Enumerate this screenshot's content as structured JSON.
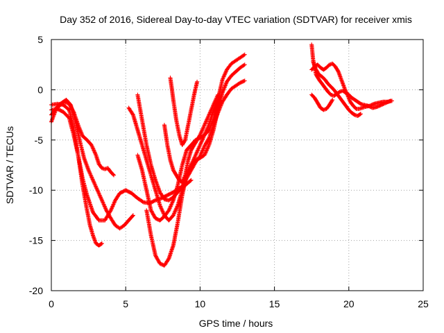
{
  "chart_data": {
    "type": "scatter",
    "title": "Day 352 of 2016, Sidereal Day-to-day VTEC variation (SDTVAR) for receiver xmis",
    "xlabel": "GPS time / hours",
    "ylabel": "SDTVAR / TECUs",
    "xlim": [
      0,
      25
    ],
    "ylim": [
      -20,
      5
    ],
    "xticks": [
      0,
      5,
      10,
      15,
      20,
      25
    ],
    "yticks": [
      5,
      0,
      -5,
      -10,
      -15,
      -20
    ],
    "grid": true,
    "marker": "+",
    "color": "#ff0000",
    "series": [
      {
        "x": [
          0,
          0.3,
          0.6,
          0.9,
          1.2,
          1.5,
          1.8,
          2.1,
          2.4,
          2.7,
          3.0,
          3.2,
          3.4,
          3.6,
          3.8,
          4.0,
          4.2
        ],
        "y": [
          -3.2,
          -2.0,
          -1.5,
          -1.2,
          -1.4,
          -2.2,
          -3.5,
          -4.6,
          -5.0,
          -5.5,
          -6.5,
          -7.4,
          -7.8,
          -7.9,
          -7.8,
          -8.2,
          -8.5
        ]
      },
      {
        "x": [
          0,
          0.4,
          0.8,
          1.2,
          1.5,
          1.8,
          2.1,
          2.4,
          2.6,
          2.8,
          3.0,
          3.2,
          3.4
        ],
        "y": [
          -1.5,
          -1.4,
          -1.5,
          -2.0,
          -3.8,
          -6.5,
          -9.5,
          -12.0,
          -13.5,
          -14.5,
          -15.3,
          -15.5,
          -15.3
        ]
      },
      {
        "x": [
          0,
          0.4,
          0.8,
          1.2,
          1.5,
          1.8,
          2.1,
          2.4,
          2.8,
          3.2,
          3.6,
          4.0,
          4.3,
          4.6,
          5.0,
          5.4,
          5.8,
          6.2,
          6.6,
          7.0,
          7.4,
          7.8,
          8.2,
          8.6,
          9.0,
          9.4
        ],
        "y": [
          -2.0,
          -1.9,
          -2.2,
          -2.8,
          -4.5,
          -6.5,
          -8.8,
          -10.5,
          -12.2,
          -13.0,
          -13.0,
          -12.0,
          -11.0,
          -10.3,
          -10.0,
          -10.3,
          -10.8,
          -11.2,
          -11.3,
          -11.0,
          -10.8,
          -10.5,
          -10.2,
          -9.8,
          -9.5,
          -9.0
        ]
      },
      {
        "x": [
          0,
          0.5,
          1.0,
          1.3,
          1.6,
          1.9,
          2.2,
          2.5,
          2.8,
          3.1,
          3.4,
          3.7,
          4.0,
          4.3,
          4.6,
          4.9,
          5.2,
          5.5
        ],
        "y": [
          -2.5,
          -1.5,
          -1.0,
          -1.5,
          -3.0,
          -5.0,
          -6.8,
          -8.0,
          -9.0,
          -10.0,
          -11.0,
          -12.0,
          -12.8,
          -13.5,
          -13.8,
          -13.5,
          -13.0,
          -12.5
        ]
      },
      {
        "x": [
          5.8,
          6.1,
          6.4,
          6.7,
          7.0,
          7.3,
          7.6,
          7.9,
          8.2,
          8.5,
          8.8,
          9.1,
          9.4,
          9.7,
          10.0,
          10.3,
          10.6,
          10.9,
          11.2,
          11.5,
          11.8,
          12.1,
          12.4,
          12.7,
          13.0
        ],
        "y": [
          -0.5,
          -3.0,
          -5.5,
          -7.5,
          -9.0,
          -10.2,
          -10.9,
          -11.0,
          -10.7,
          -10.2,
          -9.6,
          -8.8,
          -8.0,
          -7.2,
          -6.6,
          -5.6,
          -4.8,
          -3.5,
          -2.3,
          -1.2,
          -0.5,
          0.1,
          0.4,
          0.7,
          0.9
        ]
      },
      {
        "x": [
          5.8,
          6.1,
          6.4,
          6.7,
          7.0,
          7.3,
          7.6,
          7.9,
          8.2,
          8.5,
          8.8,
          9.1,
          9.4,
          9.7,
          10.0,
          10.3,
          10.6,
          10.9,
          11.2,
          11.5,
          11.8,
          12.1,
          12.4,
          12.7,
          13.0
        ],
        "y": [
          -6.5,
          -8.0,
          -10.0,
          -12.0,
          -12.8,
          -13.0,
          -12.6,
          -12.0,
          -11.0,
          -9.5,
          -7.5,
          -6.0,
          -5.5,
          -5.0,
          -4.8,
          -4.5,
          -4.0,
          -3.0,
          -1.0,
          1.0,
          2.0,
          2.6,
          2.9,
          3.2,
          3.5
        ]
      },
      {
        "x": [
          6.4,
          6.7,
          7.0,
          7.3,
          7.6,
          7.9,
          8.2,
          8.5,
          8.8,
          9.1,
          9.4,
          9.7,
          10.0,
          10.3,
          10.6,
          10.9,
          11.2,
          11.5,
          11.8,
          12.1,
          12.4,
          12.7,
          13.0
        ],
        "y": [
          -12.0,
          -14.5,
          -16.5,
          -17.3,
          -17.5,
          -16.8,
          -15.5,
          -13.2,
          -10.5,
          -8.5,
          -7.5,
          -7.0,
          -6.8,
          -6.5,
          -5.5,
          -4.0,
          -2.0,
          -0.3,
          0.8,
          1.4,
          1.8,
          2.2,
          2.5
        ]
      },
      {
        "x": [
          5.2,
          5.5,
          5.8,
          6.1,
          6.4,
          6.7,
          7.0,
          7.3,
          7.6,
          7.9,
          8.2,
          8.5,
          8.8,
          9.1,
          9.4,
          9.7,
          10.0,
          10.3,
          10.6,
          10.9,
          11.2
        ],
        "y": [
          -1.8,
          -2.5,
          -4.0,
          -5.5,
          -7.0,
          -8.5,
          -10.0,
          -11.5,
          -12.5,
          -13.0,
          -12.5,
          -11.5,
          -10.0,
          -8.5,
          -7.5,
          -6.5,
          -5.5,
          -4.5,
          -3.5,
          -2.0,
          -1.0
        ]
      },
      {
        "x": [
          7.6,
          7.8,
          8.0,
          8.2,
          8.4,
          8.6,
          8.8,
          9.0,
          9.2,
          9.4,
          9.6,
          9.8,
          10.0,
          10.3,
          10.6,
          10.9,
          11.2
        ],
        "y": [
          -3.5,
          -5.5,
          -7.0,
          -8.0,
          -8.5,
          -9.0,
          -9.2,
          -8.5,
          -7.0,
          -6.0,
          -5.5,
          -5.0,
          -4.5,
          -3.5,
          -2.5,
          -1.5,
          -0.5
        ]
      },
      {
        "x": [
          8.0,
          8.2,
          8.4,
          8.6,
          8.8,
          9.0,
          9.2,
          9.4,
          9.6,
          9.8
        ],
        "y": [
          1.2,
          -1.0,
          -3.0,
          -4.5,
          -5.5,
          -5.0,
          -3.5,
          -2.0,
          -0.5,
          0.8
        ]
      },
      {
        "x": [
          17.5,
          17.6,
          17.8,
          18.0,
          18.2,
          18.4,
          18.6,
          18.8,
          19.0,
          19.2,
          19.4,
          19.6,
          19.8,
          20.0,
          20.2,
          20.4,
          20.6,
          20.8,
          21.0,
          21.3,
          21.6,
          21.9,
          22.2,
          22.5,
          22.8
        ],
        "y": [
          4.5,
          3.0,
          1.5,
          1.0,
          0.6,
          0.2,
          -0.2,
          -0.5,
          -0.6,
          -0.4,
          -0.2,
          -0.1,
          -0.3,
          -0.5,
          -0.8,
          -1.0,
          -1.2,
          -1.4,
          -1.5,
          -1.6,
          -1.8,
          -1.7,
          -1.5,
          -1.3,
          -1.1
        ]
      },
      {
        "x": [
          17.5,
          17.7,
          17.9,
          18.1,
          18.3,
          18.5,
          18.7,
          18.9,
          19.1,
          19.3,
          19.5,
          19.7,
          19.9,
          20.1,
          20.3,
          20.5,
          20.7,
          20.9,
          21.1,
          21.4,
          21.7,
          22.0,
          22.3,
          22.6,
          22.9
        ],
        "y": [
          2.0,
          2.3,
          2.5,
          2.2,
          2.0,
          2.2,
          2.5,
          2.6,
          2.3,
          1.8,
          1.0,
          0.2,
          -0.5,
          -1.2,
          -1.6,
          -1.9,
          -1.9,
          -1.8,
          -1.7,
          -1.6,
          -1.4,
          -1.3,
          -1.2,
          -1.2,
          -1.1
        ]
      },
      {
        "x": [
          17.6,
          17.8,
          18.0,
          18.2,
          18.4,
          18.6,
          18.8,
          19.0,
          19.2,
          19.4,
          19.6,
          19.8,
          20.0,
          20.2,
          20.4,
          20.6,
          20.8
        ],
        "y": [
          2.8,
          2.0,
          1.5,
          1.3,
          1.0,
          0.6,
          0.3,
          0.0,
          -0.4,
          -0.8,
          -1.2,
          -1.6,
          -2.0,
          -2.3,
          -2.5,
          -2.6,
          -2.4
        ]
      },
      {
        "x": [
          17.5,
          17.7,
          17.9,
          18.1,
          18.3,
          18.5,
          18.7,
          18.9
        ],
        "y": [
          -0.5,
          -0.8,
          -1.3,
          -1.8,
          -2.0,
          -1.9,
          -1.5,
          -1.0
        ]
      }
    ]
  }
}
